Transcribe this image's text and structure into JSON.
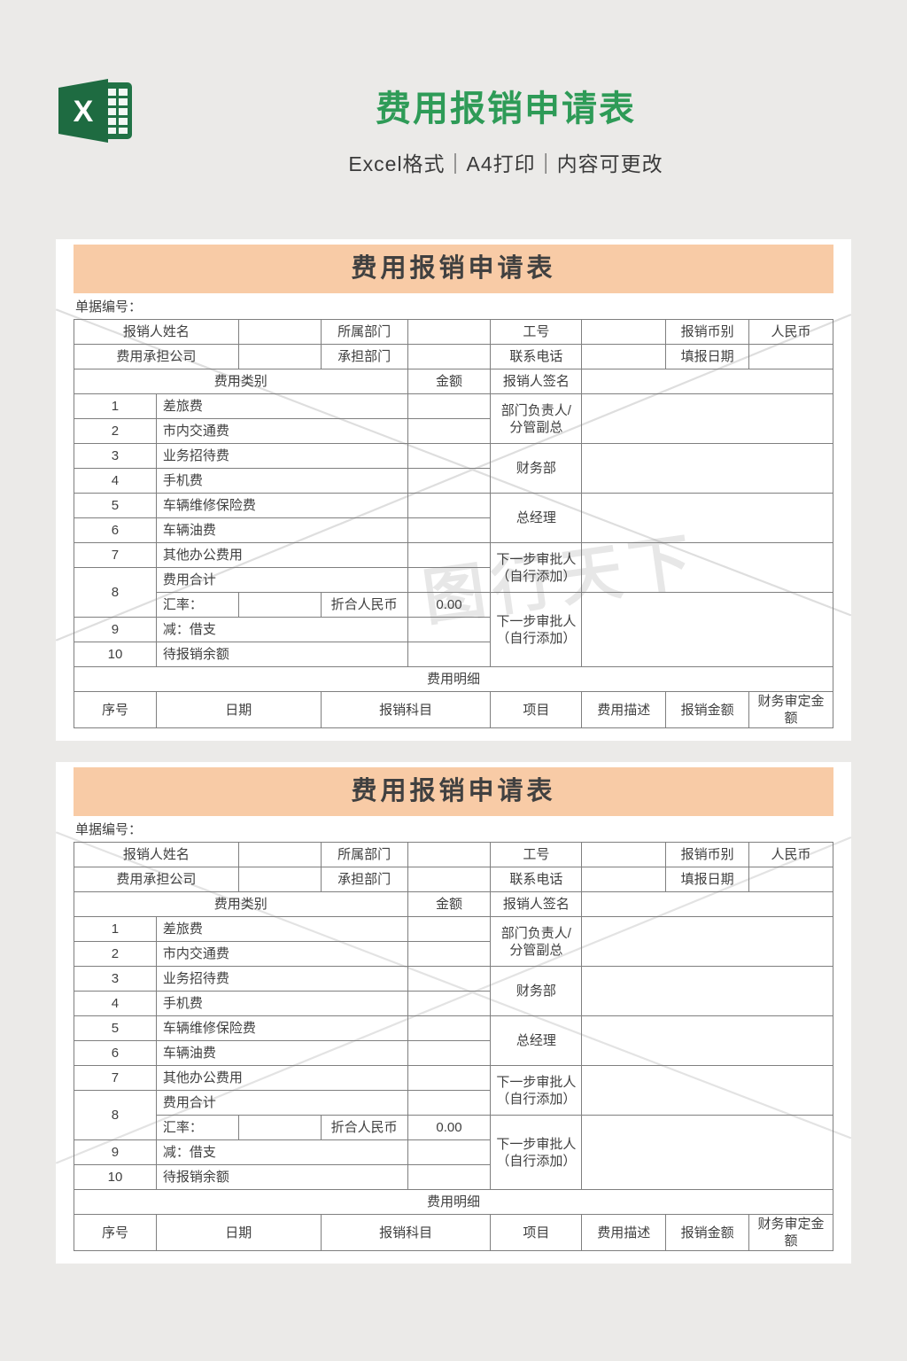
{
  "page": {
    "background": "#ebeae8"
  },
  "header": {
    "title": "费用报销申请表",
    "subtitle": "Excel格式｜A4打印｜内容可更改",
    "title_color": "#2e9b57",
    "icon": "excel-icon"
  },
  "colors": {
    "accent_green": "#2e9b57",
    "excel_banner_green": "#1e6b41",
    "excel_grid_green": "#217346",
    "table_header_bg": "#f8cba6",
    "grid_border": "#7f7f7f",
    "text": "#3f3f3f",
    "watermark": "#8b8b8b"
  },
  "watermark": {
    "text": "图行天下"
  },
  "form": {
    "title": "费用报销申请表",
    "doc_no_label": "单据编号：",
    "converted_amount": "0.00",
    "columns_pct": [
      10.84,
      10.84,
      10.84,
      11.42,
      10.95,
      12.0,
      11.07,
      10.95,
      11.07
    ],
    "grid": [
      [
        {
          "t": "报销人姓名",
          "cs": 2,
          "name": "label-applicant-name"
        },
        {
          "t": "",
          "name": "input-applicant-name"
        },
        {
          "t": "所属部门",
          "name": "label-department"
        },
        {
          "t": "",
          "name": "input-department"
        },
        {
          "t": "工号",
          "name": "label-employee-id"
        },
        {
          "t": "",
          "name": "input-employee-id"
        },
        {
          "t": "报销币别",
          "name": "label-currency"
        },
        {
          "t": "人民币",
          "name": "value-currency-rmb"
        }
      ],
      [
        {
          "t": "费用承担公司",
          "cs": 2,
          "name": "label-bearing-company"
        },
        {
          "t": "",
          "name": "input-bearing-company"
        },
        {
          "t": "承担部门",
          "name": "label-bearing-department"
        },
        {
          "t": "",
          "name": "input-bearing-department"
        },
        {
          "t": "联系电话",
          "name": "label-phone"
        },
        {
          "t": "",
          "name": "input-phone"
        },
        {
          "t": "填报日期",
          "name": "label-fill-date"
        },
        {
          "t": "",
          "name": "input-fill-date"
        }
      ],
      [
        {
          "t": "费用类别",
          "cs": 4,
          "name": "header-expense-category"
        },
        {
          "t": "金额",
          "name": "header-amount"
        },
        {
          "t": "报销人签名",
          "name": "label-applicant-signature"
        },
        {
          "t": "",
          "cs": 3,
          "name": "input-applicant-signature"
        }
      ],
      [
        {
          "t": "1",
          "name": "row-number-1"
        },
        {
          "t": "差旅费",
          "cs": 3,
          "al": "l",
          "name": "expense-travel"
        },
        {
          "t": "",
          "name": "input-amount-1"
        },
        {
          "t": "部门负责人/分管副总",
          "rs": 2,
          "name": "label-dept-head-approval"
        },
        {
          "t": "",
          "cs": 3,
          "rs": 2,
          "name": "input-dept-head-approval"
        }
      ],
      [
        {
          "t": "2",
          "name": "row-number-2"
        },
        {
          "t": "市内交通费",
          "cs": 3,
          "al": "l",
          "name": "expense-city-transport"
        },
        {
          "t": "",
          "name": "input-amount-2"
        }
      ],
      [
        {
          "t": "3",
          "name": "row-number-3"
        },
        {
          "t": "业务招待费",
          "cs": 3,
          "al": "l",
          "name": "expense-business-entertainment"
        },
        {
          "t": "",
          "name": "input-amount-3"
        },
        {
          "t": "财务部",
          "rs": 2,
          "name": "label-finance-dept-approval"
        },
        {
          "t": "",
          "cs": 3,
          "rs": 2,
          "name": "input-finance-dept-approval"
        }
      ],
      [
        {
          "t": "4",
          "name": "row-number-4"
        },
        {
          "t": "手机费",
          "cs": 3,
          "al": "l",
          "name": "expense-mobile-phone"
        },
        {
          "t": "",
          "name": "input-amount-4"
        }
      ],
      [
        {
          "t": "5",
          "name": "row-number-5"
        },
        {
          "t": "车辆维修保险费",
          "cs": 3,
          "al": "l",
          "name": "expense-vehicle-repair-insurance"
        },
        {
          "t": "",
          "name": "input-amount-5"
        },
        {
          "t": "总经理",
          "rs": 2,
          "name": "label-general-manager-approval"
        },
        {
          "t": "",
          "cs": 3,
          "rs": 2,
          "name": "input-general-manager-approval"
        }
      ],
      [
        {
          "t": "6",
          "name": "row-number-6"
        },
        {
          "t": "车辆油费",
          "cs": 3,
          "al": "l",
          "name": "expense-vehicle-fuel"
        },
        {
          "t": "",
          "name": "input-amount-6"
        }
      ],
      [
        {
          "t": "7",
          "name": "row-number-7"
        },
        {
          "t": "其他办公费用",
          "cs": 3,
          "al": "l",
          "name": "expense-other-office"
        },
        {
          "t": "",
          "name": "input-amount-7"
        },
        {
          "t": "下一步审批人（自行添加）",
          "rs": 2,
          "name": "label-next-approver-1"
        },
        {
          "t": "",
          "cs": 3,
          "rs": 2,
          "name": "input-next-approver-1"
        }
      ],
      [
        {
          "t": "8",
          "rs": 2,
          "name": "row-number-8"
        },
        {
          "t": "费用合计",
          "cs": 3,
          "al": "l",
          "name": "label-expense-total"
        },
        {
          "t": "",
          "name": "input-amount-total"
        }
      ],
      [
        {
          "t": "汇率：",
          "al": "l",
          "name": "label-exchange-rate"
        },
        {
          "t": "",
          "name": "input-exchange-rate"
        },
        {
          "t": "折合人民币",
          "name": "label-converted-rmb"
        },
        {
          "t": "0.00",
          "name": "value-converted-rmb"
        },
        {
          "t": "下一步审批人（自行添加）",
          "rs": 3,
          "name": "label-next-approver-2"
        },
        {
          "t": "",
          "cs": 3,
          "rs": 3,
          "name": "input-next-approver-2"
        }
      ],
      [
        {
          "t": "9",
          "name": "row-number-9"
        },
        {
          "t": "减：借支",
          "cs": 3,
          "al": "l",
          "name": "label-minus-borrowing"
        },
        {
          "t": "",
          "name": "input-amount-9"
        }
      ],
      [
        {
          "t": "10",
          "name": "row-number-10"
        },
        {
          "t": "待报销余额",
          "cs": 3,
          "al": "l",
          "name": "label-pending-balance"
        },
        {
          "t": "",
          "name": "input-amount-10"
        }
      ],
      [
        {
          "t": "费用明细",
          "cs": 9,
          "name": "section-expense-detail"
        }
      ],
      [
        {
          "t": "序号",
          "name": "detail-col-index"
        },
        {
          "t": "日期",
          "cs": 2,
          "name": "detail-col-date"
        },
        {
          "t": "报销科目",
          "cs": 2,
          "name": "detail-col-subject"
        },
        {
          "t": "项目",
          "name": "detail-col-project"
        },
        {
          "t": "费用描述",
          "name": "detail-col-description"
        },
        {
          "t": "报销金额",
          "name": "detail-col-amount"
        },
        {
          "t": "财务审定金额",
          "name": "detail-col-approved-amount"
        }
      ]
    ]
  }
}
